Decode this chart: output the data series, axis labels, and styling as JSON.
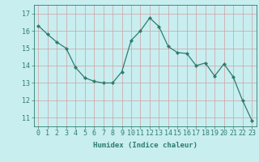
{
  "x": [
    0,
    1,
    2,
    3,
    4,
    5,
    6,
    7,
    8,
    9,
    10,
    11,
    12,
    13,
    14,
    15,
    16,
    17,
    18,
    19,
    20,
    21,
    22,
    23
  ],
  "y": [
    16.3,
    15.8,
    15.35,
    15.0,
    13.9,
    13.3,
    13.1,
    13.0,
    13.0,
    13.65,
    15.45,
    16.0,
    16.75,
    16.25,
    15.1,
    14.75,
    14.7,
    14.0,
    14.15,
    13.4,
    14.1,
    13.35,
    12.0,
    10.85
  ],
  "line_color": "#2e7d6e",
  "marker": "D",
  "marker_size": 2.0,
  "bg_color": "#c8eef0",
  "grid_color": "#d0a0a0",
  "axis_color": "#2e7d6e",
  "xlabel": "Humidex (Indice chaleur)",
  "ylim": [
    10.5,
    17.5
  ],
  "xlim": [
    -0.5,
    23.5
  ],
  "yticks": [
    11,
    12,
    13,
    14,
    15,
    16,
    17
  ],
  "xticks": [
    0,
    1,
    2,
    3,
    4,
    5,
    6,
    7,
    8,
    9,
    10,
    11,
    12,
    13,
    14,
    15,
    16,
    17,
    18,
    19,
    20,
    21,
    22,
    23
  ],
  "tick_color": "#2e7d6e",
  "label_fontsize": 6.5,
  "tick_fontsize": 6.0
}
